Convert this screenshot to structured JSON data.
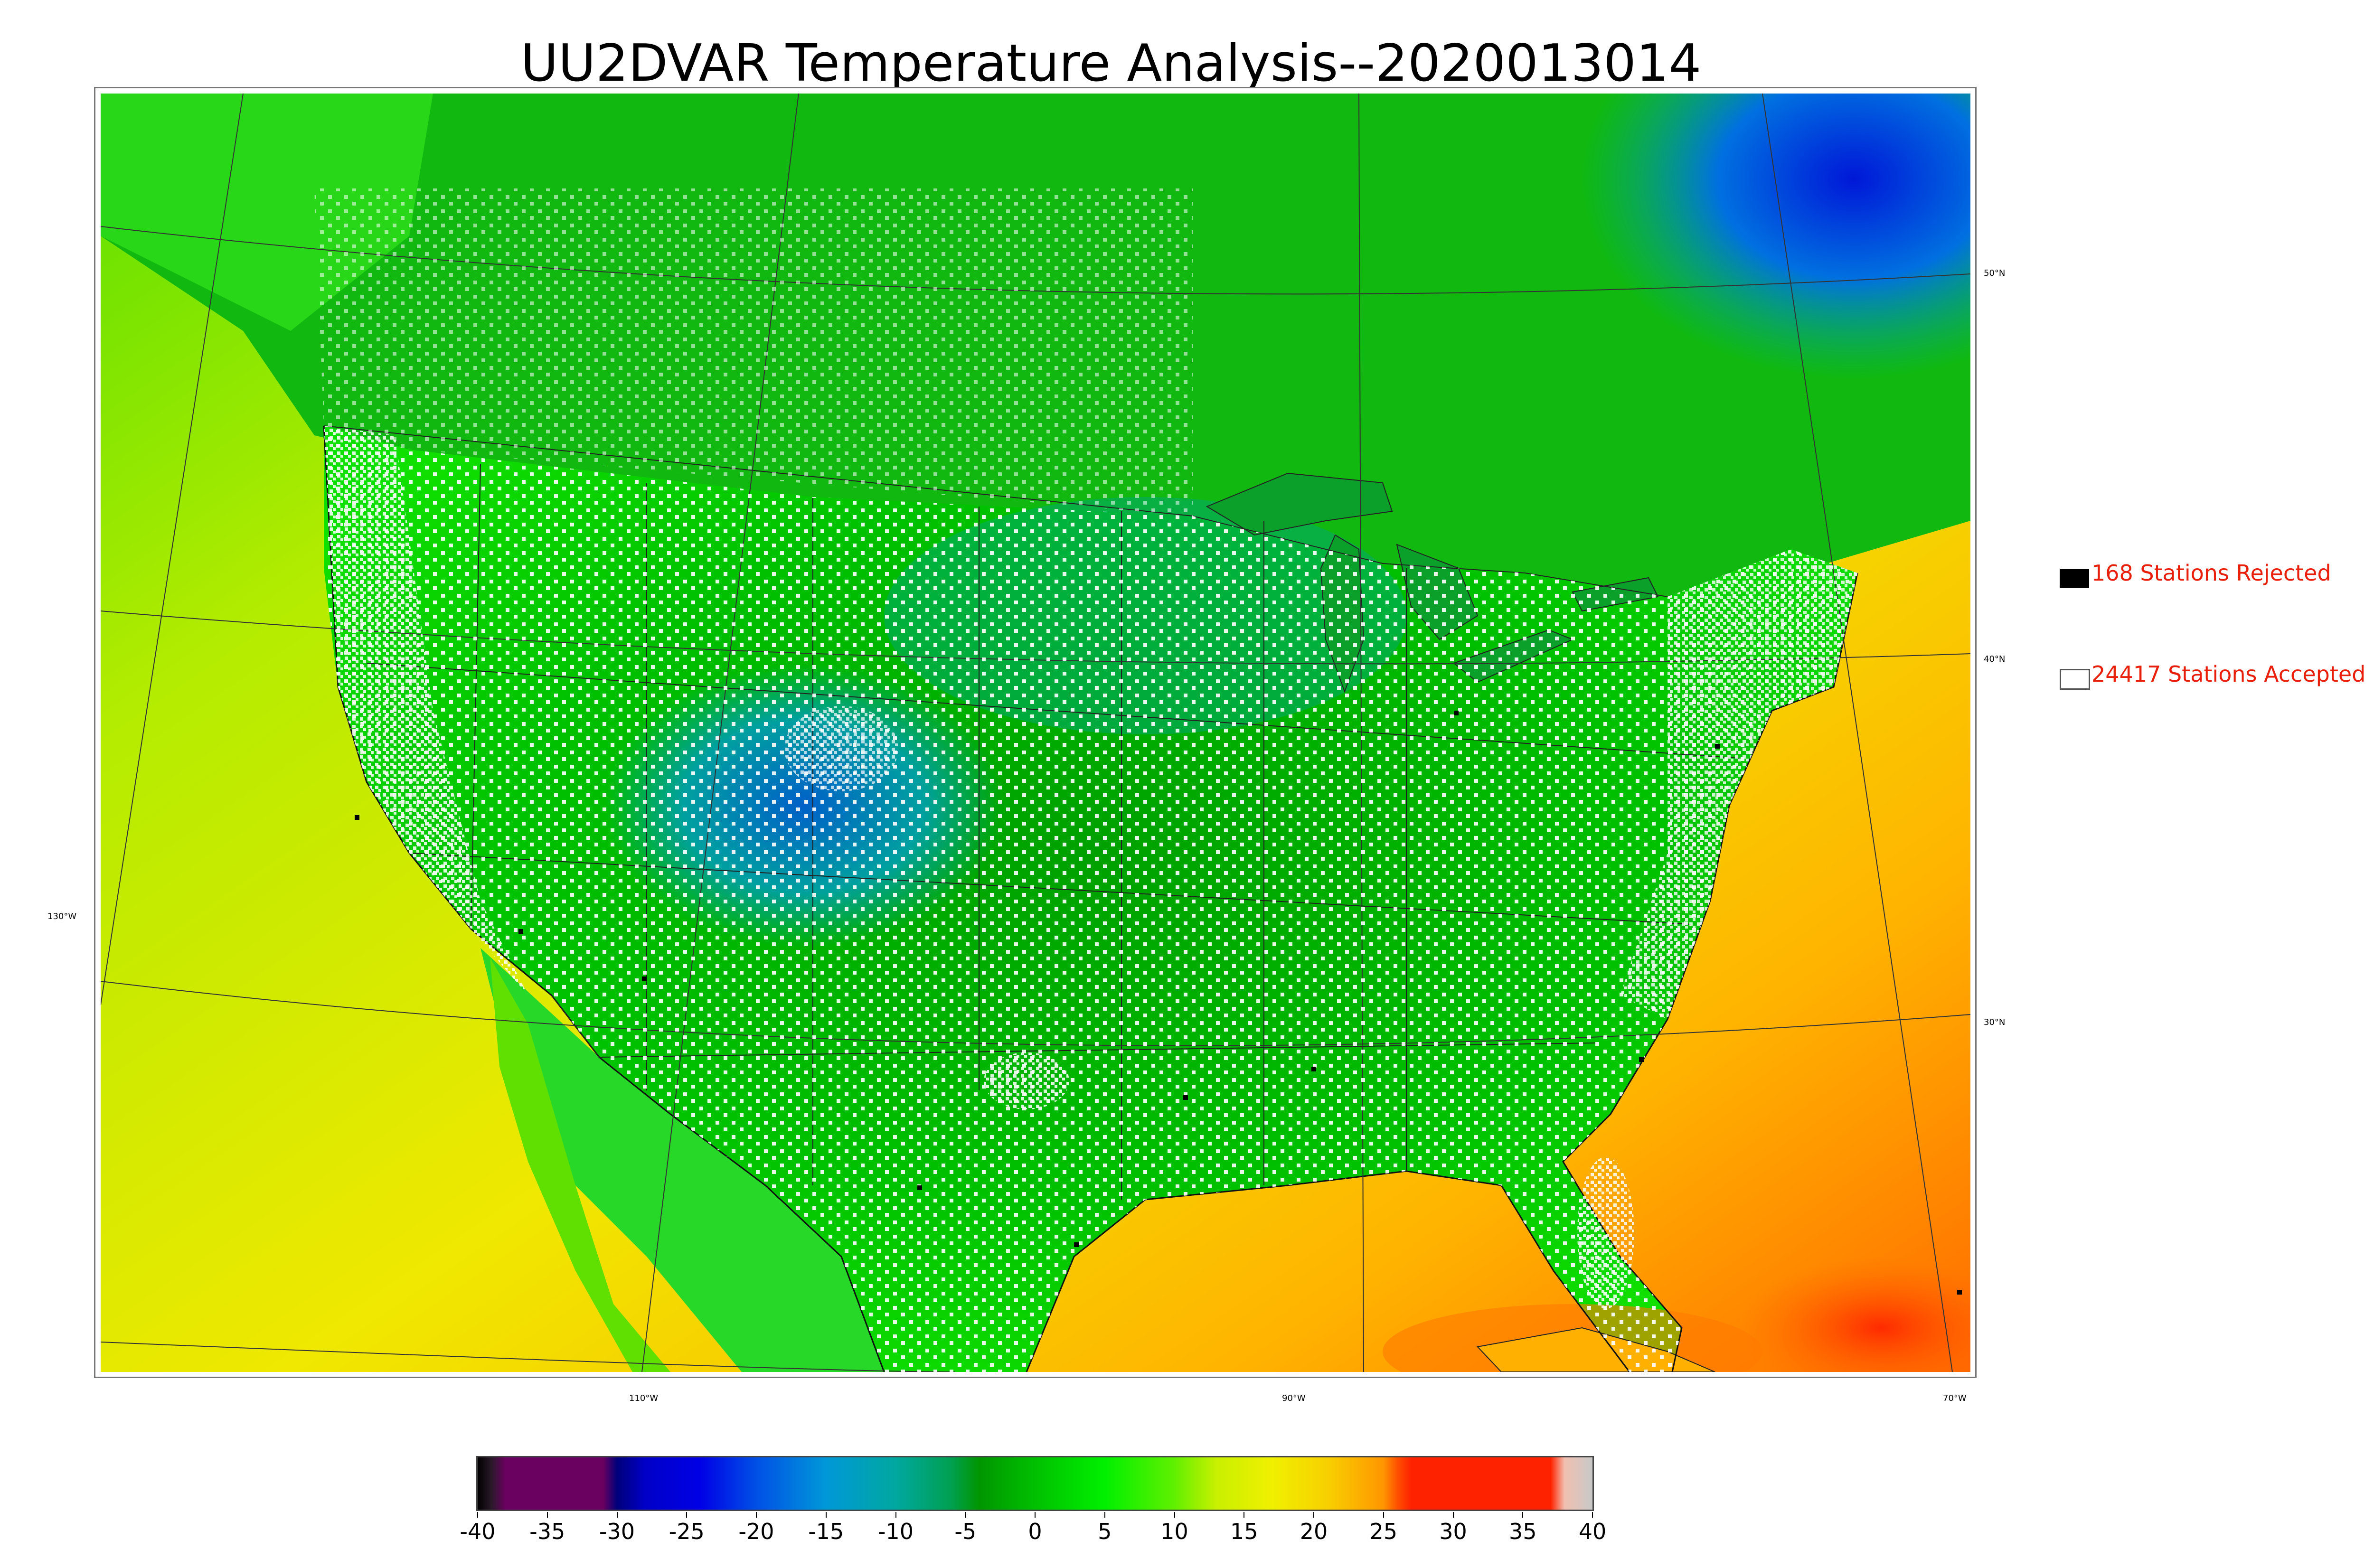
{
  "title": "UU2DVAR Temperature Analysis--2020013014",
  "graticule": {
    "lat_labels": [
      "50°N",
      "40°N",
      "30°N"
    ],
    "lon_labels": [
      "130°W",
      "110°W",
      "90°W",
      "70°W"
    ]
  },
  "legend": {
    "rejected": {
      "label": "168 Stations Rejected",
      "count": 168,
      "color": "#000000"
    },
    "accepted": {
      "label": "24417 Stations Accepted",
      "count": 24417,
      "color": "#ffffff"
    }
  },
  "colorbar": {
    "min": -40,
    "max": 40,
    "tick_labels": [
      "-40",
      "-35",
      "-30",
      "-25",
      "-20",
      "-15",
      "-10",
      "-5",
      "0",
      "5",
      "10",
      "15",
      "20",
      "25",
      "30",
      "35",
      "40"
    ],
    "stops": [
      {
        "value": -40,
        "color": "#000000"
      },
      {
        "value": -39,
        "color": "#2a1a2a"
      },
      {
        "value": -38,
        "color": "#6a0060"
      },
      {
        "value": -31,
        "color": "#6a0060"
      },
      {
        "value": -30,
        "color": "#00007a"
      },
      {
        "value": -28,
        "color": "#0000c8"
      },
      {
        "value": -24,
        "color": "#0000e6"
      },
      {
        "value": -20,
        "color": "#0050e6"
      },
      {
        "value": -15,
        "color": "#0098d8"
      },
      {
        "value": -10,
        "color": "#00a8a0"
      },
      {
        "value": -6,
        "color": "#00a050"
      },
      {
        "value": -4,
        "color": "#009600"
      },
      {
        "value": 0,
        "color": "#00c000"
      },
      {
        "value": 5,
        "color": "#00f000"
      },
      {
        "value": 10,
        "color": "#60f000"
      },
      {
        "value": 13,
        "color": "#c8f000"
      },
      {
        "value": 17,
        "color": "#f0f000"
      },
      {
        "value": 21,
        "color": "#f8d000"
      },
      {
        "value": 25,
        "color": "#ff9600"
      },
      {
        "value": 26,
        "color": "#ff5000"
      },
      {
        "value": 27,
        "color": "#ff2200"
      },
      {
        "value": 37,
        "color": "#ff2200"
      },
      {
        "value": 38,
        "color": "#f0c0b0"
      },
      {
        "value": 40,
        "color": "#c8c8c8"
      }
    ]
  }
}
